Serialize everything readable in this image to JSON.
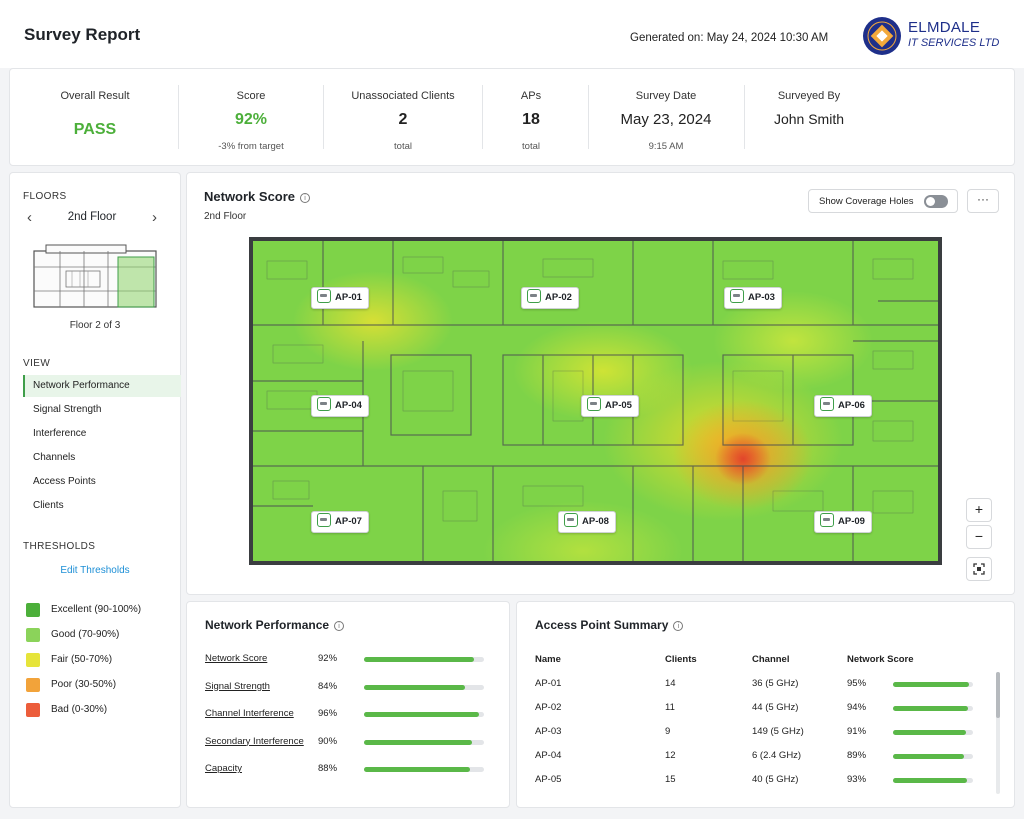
{
  "header": {
    "title": "Survey Report",
    "generated": "Generated on: May 24, 2024 10:30 AM",
    "brand_name": "ELMDALE",
    "brand_sub": "IT SERVICES LTD",
    "brand_color": "#1e2f8a"
  },
  "summary": {
    "overall": {
      "label": "Overall Result",
      "value": "PASS"
    },
    "score": {
      "label": "Score",
      "value": "92%",
      "sub": "-3% from target"
    },
    "clients": {
      "label": "Unassociated Clients",
      "value": "2",
      "sub": "total"
    },
    "aps": {
      "label": "APs",
      "value": "18",
      "sub": "total"
    },
    "date": {
      "label": "Survey Date",
      "value": "May 23, 2024",
      "sub": "9:15 AM"
    },
    "surveyor": {
      "label": "Surveyed By",
      "value": "John Smith"
    },
    "pass_color": "#4caf3a"
  },
  "sidebar": {
    "floors_label": "FLOORS",
    "floor_name": "2nd Floor",
    "floor_count": "Floor 2 of 3",
    "view_label": "VIEW",
    "views": [
      "Network Performance",
      "Signal Strength",
      "Interference",
      "Channels",
      "Access Points",
      "Clients"
    ],
    "active_view": 0,
    "thresholds_label": "THRESHOLDS",
    "edit_thresholds": "Edit Thresholds",
    "legend": [
      {
        "label": "Excellent (90-100%)",
        "color": "#4caf3a"
      },
      {
        "label": "Good (70-90%)",
        "color": "#8bd35a"
      },
      {
        "label": "Fair (50-70%)",
        "color": "#e6e43a"
      },
      {
        "label": "Poor (30-50%)",
        "color": "#f2a33a"
      },
      {
        "label": "Bad (0-30%)",
        "color": "#ec5d3b"
      }
    ]
  },
  "map": {
    "title": "Network Score",
    "subtitle": "2nd Floor",
    "toggle_label": "Show Coverage Holes",
    "more": "···",
    "zoom_in": "+",
    "zoom_out": "−",
    "aps": [
      "AP-01",
      "AP-02",
      "AP-03",
      "AP-04",
      "AP-05",
      "AP-06",
      "AP-07",
      "AP-08",
      "AP-09"
    ]
  },
  "network_performance": {
    "title": "Network Performance",
    "rows": [
      {
        "label": "Network Score",
        "value": "92%",
        "pct": 0.92
      },
      {
        "label": "Signal Strength",
        "value": "84%",
        "pct": 0.84
      },
      {
        "label": "Channel Interference",
        "value": "96%",
        "pct": 0.96
      },
      {
        "label": "Secondary Interference",
        "value": "90%",
        "pct": 0.9
      },
      {
        "label": "Capacity",
        "value": "88%",
        "pct": 0.88
      }
    ]
  },
  "ap_summary": {
    "title": "Access Point Summary",
    "columns": [
      "Name",
      "Clients",
      "Channel",
      "Network Score"
    ],
    "rows": [
      {
        "name": "AP-01",
        "clients": "14",
        "channel": "36 (5 GHz)",
        "score": "95%",
        "pct": 0.95
      },
      {
        "name": "AP-02",
        "clients": "11",
        "channel": "44 (5 GHz)",
        "score": "94%",
        "pct": 0.94
      },
      {
        "name": "AP-03",
        "clients": "9",
        "channel": "149 (5 GHz)",
        "score": "91%",
        "pct": 0.91
      },
      {
        "name": "AP-04",
        "clients": "12",
        "channel": "6 (2.4 GHz)",
        "score": "89%",
        "pct": 0.89
      },
      {
        "name": "AP-05",
        "clients": "15",
        "channel": "40 (5 GHz)",
        "score": "93%",
        "pct": 0.93
      }
    ]
  }
}
